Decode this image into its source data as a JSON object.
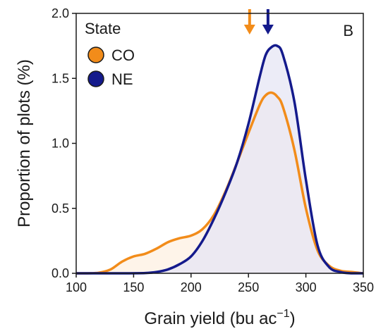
{
  "chart_data": {
    "type": "area",
    "panel_label": "B",
    "xlabel": {
      "main": "Grain yield (bu ac",
      "sup": "−1",
      "close": ")"
    },
    "ylabel": "Proportion of plots (%)",
    "xlim": [
      100,
      350
    ],
    "ylim": [
      0,
      2.0
    ],
    "x_ticks": [
      100,
      150,
      200,
      250,
      300,
      350
    ],
    "x_tick_labels": [
      "100",
      "150",
      "200",
      "250",
      "300",
      "350"
    ],
    "y_ticks": [
      0.0,
      0.5,
      1.0,
      1.5,
      2.0
    ],
    "y_tick_labels": [
      "0.0",
      "0.5",
      "1.0",
      "1.5",
      "2.0"
    ],
    "grid": false,
    "legend": {
      "title": "State",
      "position": "top-left"
    },
    "series": [
      {
        "name": "CO",
        "color": "#f28c1a",
        "fill": "#fdf0e2",
        "mean_marker_x": 251,
        "x": [
          100,
          110,
          120,
          130,
          140,
          150,
          160,
          170,
          180,
          190,
          200,
          210,
          220,
          230,
          240,
          250,
          260,
          265,
          270,
          275,
          280,
          290,
          300,
          310,
          320,
          330,
          340,
          350
        ],
        "y": [
          0.0,
          0.0,
          0.005,
          0.03,
          0.09,
          0.13,
          0.15,
          0.19,
          0.24,
          0.27,
          0.29,
          0.34,
          0.45,
          0.63,
          0.85,
          1.08,
          1.3,
          1.37,
          1.39,
          1.36,
          1.28,
          0.95,
          0.5,
          0.18,
          0.06,
          0.02,
          0.01,
          0.0
        ]
      },
      {
        "name": "NE",
        "color": "#141a8c",
        "fill": "#e6e6f4",
        "mean_marker_x": 267,
        "x": [
          100,
          140,
          160,
          170,
          180,
          190,
          200,
          210,
          220,
          230,
          240,
          250,
          260,
          265,
          270,
          275,
          280,
          290,
          300,
          310,
          320,
          330,
          340,
          350
        ],
        "y": [
          0.0,
          0.0,
          0.002,
          0.01,
          0.03,
          0.07,
          0.13,
          0.25,
          0.42,
          0.62,
          0.85,
          1.15,
          1.52,
          1.68,
          1.74,
          1.75,
          1.68,
          1.32,
          0.72,
          0.22,
          0.05,
          0.01,
          0.0,
          0.0
        ]
      }
    ]
  }
}
